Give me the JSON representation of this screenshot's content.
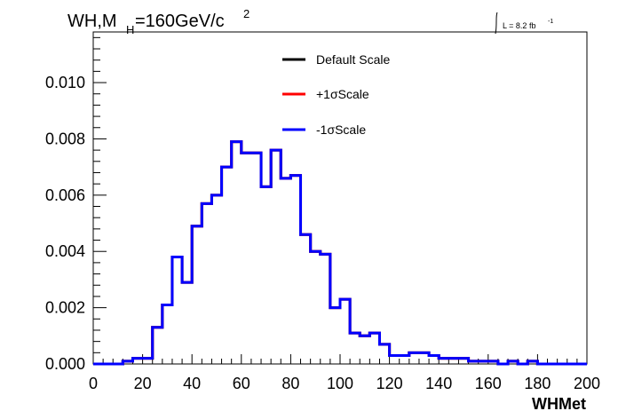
{
  "plot": {
    "title_main": "WH,M",
    "title_sub": "H",
    "title_rest": "=160GeV/c",
    "title_sup": "2",
    "lumi_label": "L = 8.2 fb",
    "lumi_sup": "-1"
  },
  "chart_data": {
    "type": "line",
    "style": "step-histogram",
    "xlabel": "WHMet",
    "ylabel": "",
    "xlim": [
      0,
      200
    ],
    "ylim": [
      0,
      0.0118
    ],
    "x_ticks": [
      "0",
      "20",
      "40",
      "60",
      "80",
      "100",
      "120",
      "140",
      "160",
      "180",
      "200"
    ],
    "y_ticks": [
      "0.000",
      "0.002",
      "0.004",
      "0.006",
      "0.008",
      "0.010"
    ],
    "y_tick_values": [
      0,
      0.002,
      0.004,
      0.006,
      0.008,
      0.01
    ],
    "bin_edges": [
      0,
      4,
      8,
      12,
      16,
      20,
      24,
      28,
      32,
      36,
      40,
      44,
      48,
      52,
      56,
      60,
      64,
      68,
      72,
      76,
      80,
      84,
      88,
      92,
      96,
      100,
      104,
      108,
      112,
      116,
      120,
      124,
      128,
      132,
      136,
      140,
      144,
      148,
      152,
      156,
      160,
      164,
      168,
      172,
      176,
      180,
      184,
      188,
      192,
      196,
      200
    ],
    "legend_position": "top-center",
    "series": [
      {
        "name": "Default Scale",
        "color": "#000000",
        "values": [
          0,
          0,
          0,
          0.0001,
          0.0002,
          0.0002,
          0.0013,
          0.0021,
          0.0038,
          0.0029,
          0.0049,
          0.0057,
          0.006,
          0.007,
          0.0079,
          0.0075,
          0.0075,
          0.0063,
          0.0076,
          0.0066,
          0.0067,
          0.0046,
          0.004,
          0.0039,
          0.002,
          0.0023,
          0.0011,
          0.001,
          0.0011,
          0.0007,
          0.0003,
          0.0003,
          0.0004,
          0.0004,
          0.0003,
          0.0002,
          0.0002,
          0.0002,
          0.0001,
          0.0001,
          0.0001,
          0,
          0.0001,
          0,
          0.0001,
          0,
          0,
          0,
          0,
          0
        ]
      },
      {
        "name": "+1σScale",
        "color": "#ff0000",
        "values": [
          0,
          0,
          0,
          0.0001,
          0.0002,
          0.0002,
          0.0013,
          0.0021,
          0.0038,
          0.0029,
          0.0049,
          0.0057,
          0.006,
          0.007,
          0.0079,
          0.0075,
          0.0075,
          0.0063,
          0.0076,
          0.0066,
          0.0067,
          0.0046,
          0.004,
          0.0039,
          0.002,
          0.0023,
          0.0011,
          0.001,
          0.0011,
          0.0007,
          0.0003,
          0.0003,
          0.0004,
          0.0004,
          0.0003,
          0.0002,
          0.0002,
          0.0002,
          0.0001,
          0.0001,
          0.0001,
          0,
          0.0001,
          0,
          0.0001,
          0,
          0,
          0,
          0,
          0
        ]
      },
      {
        "name": "-1σScale",
        "color": "#0000ff",
        "values": [
          0,
          0,
          0,
          0.0001,
          0.0002,
          0.0002,
          0.0013,
          0.0021,
          0.0038,
          0.0029,
          0.0049,
          0.0057,
          0.006,
          0.007,
          0.0079,
          0.0075,
          0.0075,
          0.0063,
          0.0076,
          0.0066,
          0.0067,
          0.0046,
          0.004,
          0.0039,
          0.002,
          0.0023,
          0.0011,
          0.001,
          0.0011,
          0.0007,
          0.0003,
          0.0003,
          0.0004,
          0.0004,
          0.0003,
          0.0002,
          0.0002,
          0.0002,
          0.0001,
          0.0001,
          0.0001,
          0,
          0.0001,
          0,
          0.0001,
          0,
          0,
          0,
          0,
          0
        ]
      }
    ]
  }
}
